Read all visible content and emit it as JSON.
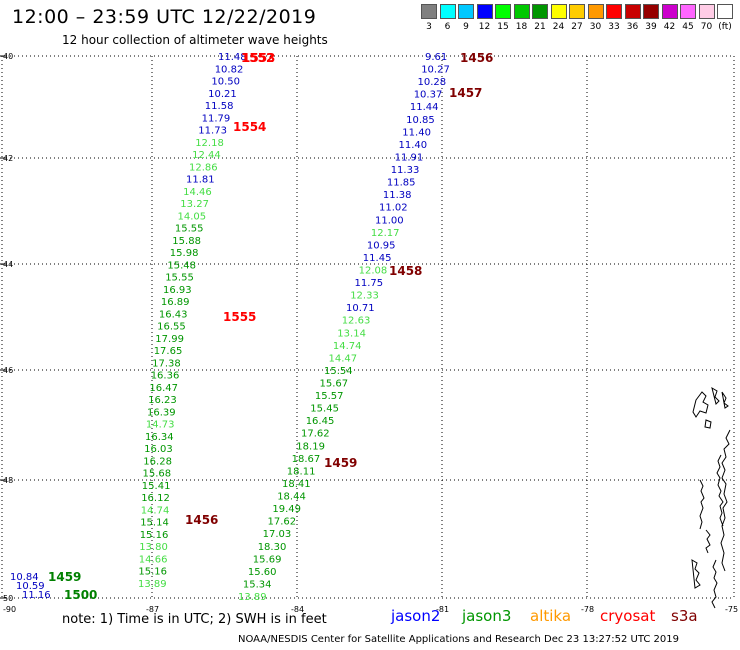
{
  "title": "12:00 – 23:59 UTC 12/22/2019",
  "subtitle": "12 hour collection of altimeter wave heights",
  "colorbar": {
    "labels": [
      "3",
      "6",
      "9",
      "12",
      "15",
      "18",
      "21",
      "24",
      "27",
      "30",
      "33",
      "36",
      "39",
      "42",
      "45",
      "70",
      "(ft)"
    ],
    "colors": [
      "#808080",
      "#00ffff",
      "#00c8ff",
      "#0000ff",
      "#00ff00",
      "#00c800",
      "#009600",
      "#ffff00",
      "#ffcc00",
      "#ff9900",
      "#ff0000",
      "#c80000",
      "#960000",
      "#cc00cc",
      "#ff66ff",
      "#ffcce6",
      "#ffffff"
    ]
  },
  "axes": {
    "lat_labels": [
      "40",
      "42",
      "44",
      "46",
      "48",
      "50"
    ],
    "lon_labels": [
      "-90",
      "-87",
      "-84",
      "-81",
      "-78",
      "-75"
    ]
  },
  "tracks": [
    {
      "label": "1552",
      "color": "#ff0000",
      "values": [
        "11.48",
        "10.82",
        "10.50",
        "10.21",
        "11.58",
        "11.79",
        "11.73",
        "12.18",
        "12.44",
        "12.86",
        "11.81",
        "14.46",
        "13.27",
        "14.05",
        "15.55",
        "15.88",
        "15.98",
        "15.48",
        "15.55",
        "16.93",
        "16.89",
        "16.43",
        "16.55",
        "17.99",
        "17.65",
        "17.38",
        "16.36",
        "16.47",
        "16.23",
        "16.39",
        "14.73",
        "16.34",
        "16.03",
        "16.28",
        "15.68",
        "15.41",
        "16.12",
        "14.74",
        "15.14",
        "15.16",
        "13.80",
        "14.66",
        "15.16",
        "13.89"
      ],
      "colors": [
        "b",
        "b",
        "b",
        "b",
        "b",
        "b",
        "b",
        "l",
        "l",
        "l",
        "b",
        "l",
        "l",
        "l",
        "g",
        "g",
        "g",
        "g",
        "g",
        "g",
        "g",
        "g",
        "g",
        "g",
        "g",
        "g",
        "g",
        "g",
        "g",
        "g",
        "l",
        "g",
        "g",
        "g",
        "g",
        "g",
        "g",
        "l",
        "g",
        "g",
        "l",
        "l",
        "g",
        "l"
      ]
    },
    {
      "label": "1553",
      "color": "#ff0000"
    },
    {
      "label": "1554",
      "color": "#ff0000"
    },
    {
      "label": "1555",
      "color": "#ff0000"
    },
    {
      "label": "1456",
      "color": "#800000",
      "values": [
        "9.61",
        "10.27",
        "10.28",
        "10.37",
        "11.44",
        "10.85",
        "11.40",
        "11.40",
        "11.91",
        "11.33",
        "11.85",
        "11.38",
        "11.02",
        "11.00",
        "12.17",
        "10.95",
        "11.45",
        "12.08",
        "11.75",
        "12.33",
        "10.71",
        "12.63",
        "13.14",
        "14.74",
        "14.47",
        "15.54",
        "15.67",
        "15.57",
        "15.45",
        "16.45",
        "17.62",
        "18.19",
        "18.67",
        "18.11",
        "18.41",
        "18.44",
        "19.49",
        "17.62",
        "17.03",
        "18.30",
        "15.69",
        "15.60",
        "15.34",
        "13.89"
      ],
      "colors": [
        "b",
        "b",
        "b",
        "b",
        "b",
        "b",
        "b",
        "b",
        "b",
        "b",
        "b",
        "b",
        "b",
        "b",
        "l",
        "b",
        "b",
        "l",
        "b",
        "l",
        "b",
        "l",
        "l",
        "l",
        "l",
        "g",
        "g",
        "g",
        "g",
        "g",
        "g",
        "g",
        "g",
        "g",
        "g",
        "g",
        "g",
        "g",
        "g",
        "g",
        "g",
        "g",
        "g",
        "l"
      ]
    },
    {
      "label": "1457",
      "color": "#800000"
    },
    {
      "label": "1458",
      "color": "#800000"
    },
    {
      "label": "1459",
      "color": "#800000"
    },
    {
      "label": "1459",
      "color": "#008000"
    },
    {
      "label": "1500",
      "color": "#008000",
      "values": [
        "10.84",
        "10.59",
        "11.16"
      ],
      "colors": [
        "b",
        "b",
        "b"
      ]
    }
  ],
  "value_colors": {
    "b": "#0000c0",
    "l": "#44dd44",
    "g": "#009600"
  },
  "legend": [
    {
      "name": "jason2",
      "color": "#0000ff"
    },
    {
      "name": "jason3",
      "color": "#009600"
    },
    {
      "name": "altika",
      "color": "#ff9900"
    },
    {
      "name": "cryosat",
      "color": "#ff0000"
    },
    {
      "name": "s3a",
      "color": "#800000"
    }
  ],
  "note": "note:  1) Time is in UTC;  2) SWH is in feet",
  "footer": "NOAA/NESDIS Center for Satellite Applications and Research    Dec 23 13:27:52 UTC 2019"
}
